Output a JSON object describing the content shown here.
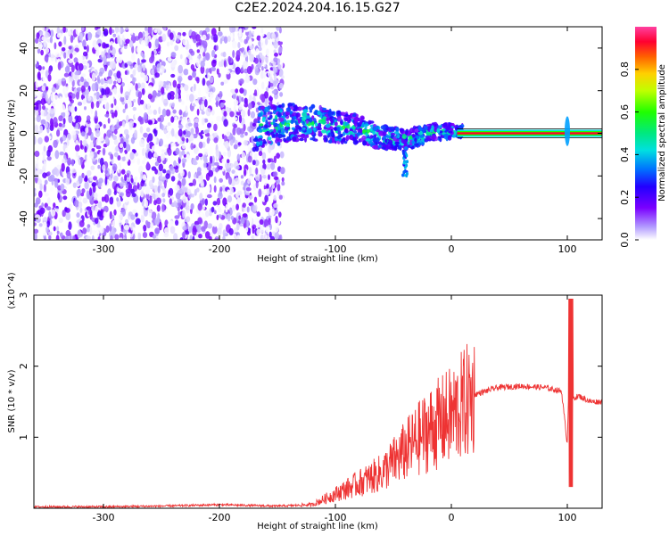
{
  "title": "C2E2.2024.204.16.15.G27",
  "chart_data": [
    {
      "type": "heatmap",
      "xlabel": "Height of straight line (km)",
      "ylabel": "Frequency (Hz)",
      "xlim": [
        -360,
        130
      ],
      "ylim": [
        -50,
        50
      ],
      "x_ticks": [
        -300,
        -200,
        -100,
        0,
        100
      ],
      "y_ticks": [
        -40,
        -20,
        0,
        20,
        40
      ],
      "colorbar": {
        "label": "Normalized spectral amplitude",
        "ticks": [
          0.0,
          0.2,
          0.4,
          0.6,
          0.8
        ],
        "range": [
          0,
          1
        ]
      },
      "features": [
        {
          "region": "noise",
          "x_range": [
            -360,
            -145
          ],
          "freq_range": [
            -50,
            50
          ],
          "amplitude": [
            0.0,
            0.15
          ]
        },
        {
          "region": "doppler-band",
          "points": [
            [
              -170,
              2
            ],
            [
              -140,
              5
            ],
            [
              -120,
              5
            ],
            [
              -100,
              3
            ],
            [
              -80,
              2
            ],
            [
              -60,
              -2
            ],
            [
              -40,
              -3
            ],
            [
              -20,
              0
            ],
            [
              0,
              1
            ]
          ],
          "amplitude": [
            0.2,
            0.6
          ]
        },
        {
          "region": "carrier-line",
          "x_range": [
            5,
            130
          ],
          "frequency": 0,
          "amplitude": 1.0
        },
        {
          "region": "spike",
          "x": 100,
          "freq_range": [
            -6,
            8
          ],
          "amplitude": [
            0.2,
            0.6
          ]
        }
      ]
    },
    {
      "type": "line",
      "xlabel": "Height of straight line (km)",
      "ylabel": "SNR (10 * v/v)",
      "yunit_multiplier": "(x10^4)",
      "xlim": [
        -360,
        130
      ],
      "ylim": [
        0,
        3
      ],
      "x_ticks": [
        -300,
        -200,
        -100,
        0,
        100
      ],
      "y_ticks": [
        1,
        2,
        3
      ],
      "color": "#ee3333",
      "series": [
        {
          "x": [
            -360,
            -300,
            -250,
            -200,
            -150,
            -120,
            -100,
            -80,
            -60,
            -40,
            -20,
            0,
            20,
            40,
            60,
            80,
            95,
            100,
            103,
            105,
            110,
            120,
            130
          ],
          "y": [
            0.02,
            0.02,
            0.03,
            0.05,
            0.03,
            0.05,
            0.2,
            0.35,
            0.5,
            0.8,
            1.1,
            1.3,
            1.6,
            1.7,
            1.72,
            1.7,
            1.65,
            0.9,
            2.9,
            1.55,
            1.58,
            1.5,
            1.5
          ]
        }
      ]
    }
  ]
}
